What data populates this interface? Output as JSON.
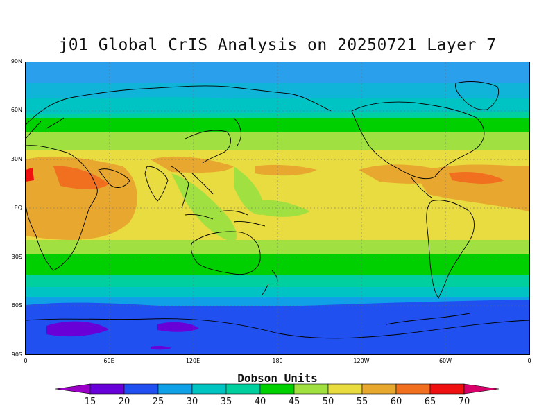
{
  "title": "j01 Global CrIS Analysis on 20250721 Layer 7",
  "colorbar": {
    "title": "Dobson Units",
    "levels": [
      "15",
      "20",
      "25",
      "30",
      "35",
      "40",
      "45",
      "50",
      "55",
      "60",
      "65",
      "70"
    ],
    "colors": [
      "#9c00c8",
      "#6a00d8",
      "#2050f0",
      "#10a0e8",
      "#00c4c4",
      "#00d0a0",
      "#00d000",
      "#a0e040",
      "#e8dc40",
      "#e8a830",
      "#f07020",
      "#f01010",
      "#d8006a"
    ]
  },
  "axes": {
    "lat_labels": [
      "90N",
      "60N",
      "30N",
      "EQ",
      "30S",
      "60S",
      "90S"
    ],
    "lon_labels": [
      "0",
      "60E",
      "120E",
      "180",
      "120W",
      "60W",
      "0"
    ]
  },
  "chart_data": {
    "type": "heatmap",
    "title": "j01 Global CrIS Analysis on 20250721 Layer 7",
    "units": "Dobson Units",
    "xlim": [
      0,
      360
    ],
    "ylim": [
      -90,
      90
    ],
    "grid": true,
    "value_range": [
      15,
      70
    ]
  }
}
